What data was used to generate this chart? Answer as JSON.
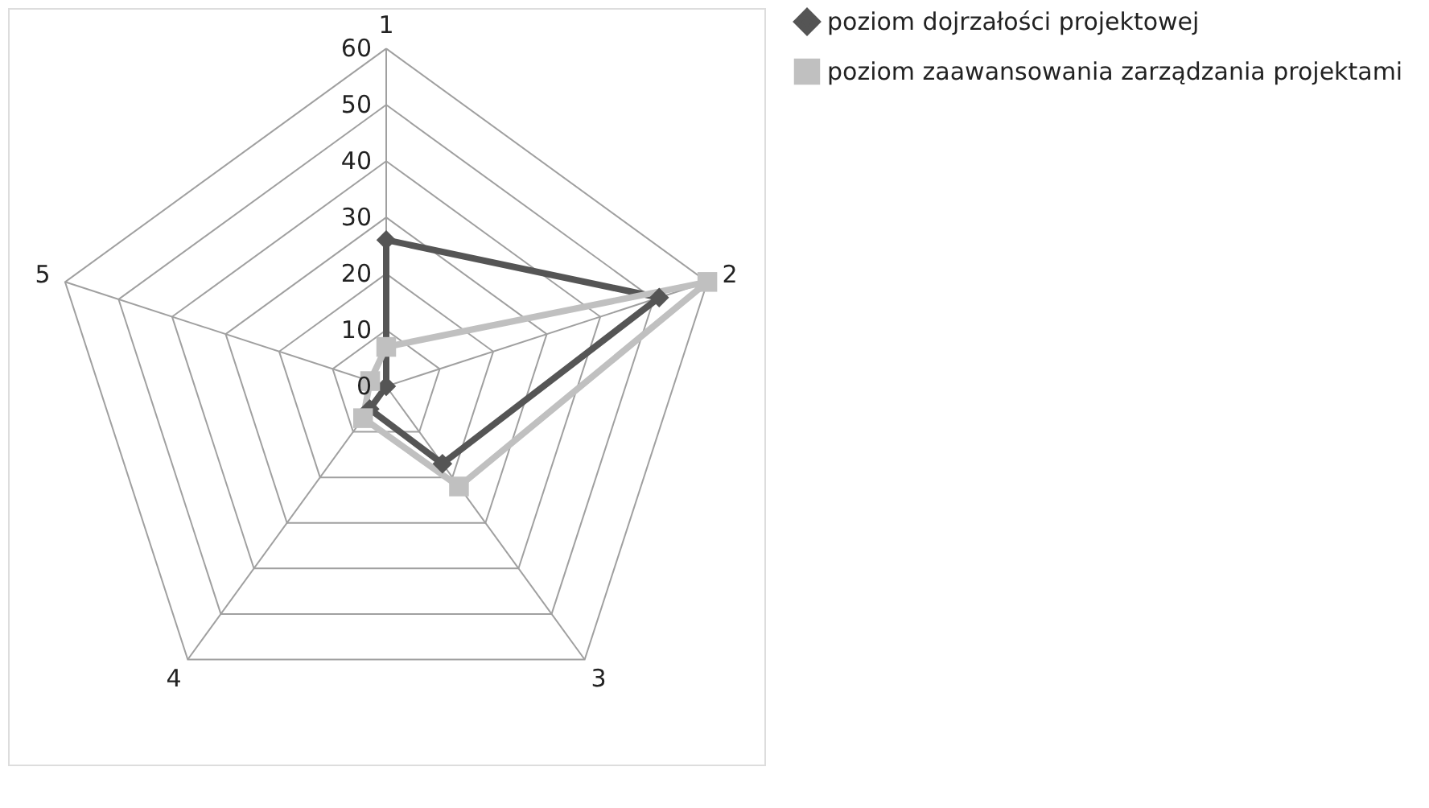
{
  "chart_data": {
    "type": "radar",
    "categories": [
      "1",
      "2",
      "3",
      "4",
      "5"
    ],
    "ylim": [
      0,
      60
    ],
    "yticks": [
      0,
      10,
      20,
      30,
      40,
      50,
      60
    ],
    "grid": true,
    "legend": "right",
    "series": [
      {
        "name": "poziom dojrzałości projektowej",
        "color": "#555555",
        "marker": "diamond",
        "values": [
          26,
          51,
          17,
          5,
          0
        ]
      },
      {
        "name": "poziom zaawansowania zarządzania projektami",
        "color": "#c0c0c0",
        "marker": "square",
        "values": [
          7,
          60,
          22,
          7,
          3
        ]
      }
    ]
  }
}
